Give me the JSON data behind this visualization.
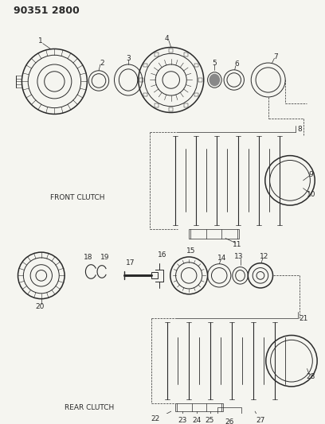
{
  "title": "90351 2800",
  "background_color": "#f5f5f0",
  "figsize": [
    4.08,
    5.33
  ],
  "dpi": 100,
  "front_clutch_label": "FRONT CLUTCH",
  "rear_clutch_label": "REAR CLUTCH",
  "line_color": "#2a2a2a"
}
